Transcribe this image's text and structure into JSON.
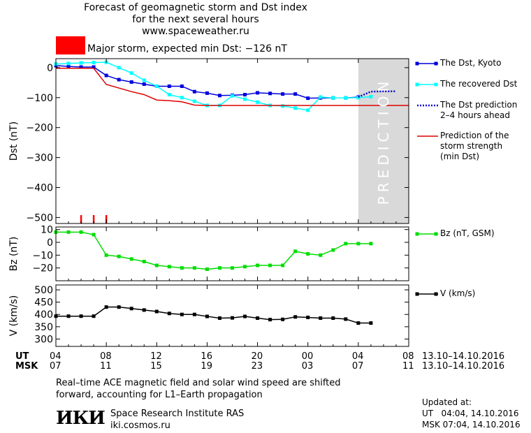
{
  "header": {
    "title_line1": "Forecast of geomagnetic storm and Dst index",
    "title_line2": "for the next several hours",
    "title_line3": "www.spaceweather.ru",
    "storm_label": "Major storm, expected min Dst: −126 nT",
    "storm_color": "#ff0000"
  },
  "chart_data": [
    {
      "type": "line",
      "panel": "dst",
      "ylabel": "Dst (nT)",
      "ylim": [
        -520,
        30
      ],
      "yticks": [
        0,
        -100,
        -200,
        -300,
        -400,
        -500
      ],
      "xlim_hours_since_04UT": [
        0,
        28
      ],
      "prediction_band": {
        "from": 24,
        "to": 28,
        "label": "PREDICTION"
      },
      "storm_markers_x": [
        2,
        3,
        4
      ],
      "series": [
        {
          "name": "The Dst, Kyoto",
          "color": "#0000dd",
          "style": "marker-square",
          "x": [
            0,
            1,
            2,
            3,
            4,
            5,
            6,
            7,
            8,
            9,
            10,
            11,
            12,
            13,
            14,
            15,
            16,
            17,
            18,
            19,
            20,
            21,
            22,
            23,
            24
          ],
          "y": [
            7,
            4,
            2,
            2,
            -26,
            -40,
            -48,
            -55,
            -62,
            -62,
            -62,
            -80,
            -85,
            -93,
            -92,
            -90,
            -84,
            -86,
            -88,
            -88,
            -102,
            -101,
            -101,
            -101,
            -98
          ]
        },
        {
          "name": "The recovered Dst",
          "color": "#00ffff",
          "style": "marker-square",
          "x": [
            0,
            1,
            2,
            3,
            4,
            5,
            6,
            7,
            8,
            9,
            10,
            11,
            12,
            13,
            14,
            15,
            16,
            17,
            18,
            19,
            20,
            21,
            22,
            23,
            24,
            25
          ],
          "y": [
            12,
            14,
            16,
            17,
            18,
            0,
            -18,
            -42,
            -62,
            -90,
            -100,
            -112,
            -126,
            -126,
            -94,
            -105,
            -115,
            -126,
            -128,
            -135,
            -142,
            -98,
            -101,
            -101,
            -100,
            -97
          ]
        },
        {
          "name": "The Dst prediction 2–4 hours ahead",
          "color": "#0000cc",
          "style": "dotted",
          "x": [
            24,
            25,
            26,
            27
          ],
          "y": [
            -98,
            -80,
            -79,
            -79
          ]
        },
        {
          "name": "Prediction of the storm strength (min Dst)",
          "color": "#dd0000",
          "style": "line",
          "x": [
            0,
            1,
            2,
            3,
            4,
            5,
            6,
            7,
            8,
            9,
            10,
            11,
            12,
            13,
            14,
            15,
            16,
            17,
            18,
            19,
            20,
            21,
            22,
            23,
            24,
            25,
            26,
            27,
            28
          ],
          "y": [
            -2,
            -2,
            -2,
            -2,
            -56,
            -68,
            -80,
            -90,
            -108,
            -110,
            -114,
            -125,
            -126,
            -126,
            -126,
            -126,
            -126,
            -126,
            -126,
            -126,
            -126,
            -126,
            -126,
            -126,
            -126,
            -126,
            -126,
            -126,
            -126
          ]
        }
      ]
    },
    {
      "type": "line",
      "panel": "bz",
      "ylabel": "Bz (nT)",
      "ylim": [
        -30,
        12
      ],
      "yticks": [
        10,
        0,
        -10,
        -20
      ],
      "series": [
        {
          "name": "Bz (nT, GSM)",
          "color": "#00dd00",
          "style": "marker-square",
          "x": [
            0,
            1,
            2,
            3,
            4,
            5,
            6,
            7,
            8,
            9,
            10,
            11,
            12,
            13,
            14,
            15,
            16,
            17,
            18,
            19,
            20,
            21,
            22,
            23,
            24,
            25
          ],
          "y": [
            8,
            8,
            8,
            6,
            -10,
            -11,
            -13,
            -15,
            -18,
            -19,
            -20,
            -20,
            -21,
            -20,
            -20,
            -19,
            -18,
            -18,
            -18,
            -7,
            -9,
            -10,
            -6,
            -1,
            -1,
            -1
          ]
        }
      ]
    },
    {
      "type": "line",
      "panel": "v",
      "ylabel": "V (km/s)",
      "ylim": [
        270,
        520
      ],
      "yticks": [
        500,
        450,
        400,
        350,
        300
      ],
      "series": [
        {
          "name": "V (km/s)",
          "color": "#000000",
          "style": "marker-square",
          "x": [
            0,
            1,
            2,
            3,
            4,
            5,
            6,
            7,
            8,
            9,
            10,
            11,
            12,
            13,
            14,
            15,
            16,
            17,
            18,
            19,
            20,
            21,
            22,
            23,
            24,
            25
          ],
          "y": [
            393,
            393,
            393,
            393,
            430,
            430,
            424,
            418,
            412,
            404,
            400,
            400,
            392,
            385,
            386,
            392,
            385,
            379,
            380,
            390,
            388,
            385,
            385,
            381,
            365,
            365
          ]
        }
      ]
    }
  ],
  "x_axis": {
    "ut_label": "UT",
    "msk_label": "MSK",
    "ut_ticks": [
      "04",
      "08",
      "12",
      "16",
      "20",
      "00",
      "04",
      "08"
    ],
    "msk_ticks": [
      "07",
      "11",
      "15",
      "19",
      "23",
      "03",
      "07",
      "11"
    ],
    "tick_hours": [
      0,
      4,
      8,
      12,
      16,
      20,
      24,
      28
    ],
    "ut_range": "13.10–14.10.2016",
    "msk_range": "13.10–14.10.2016"
  },
  "legend": {
    "dst_kyoto": "The Dst, Kyoto",
    "recovered": "The recovered Dst",
    "prediction_line1": "The Dst prediction",
    "prediction_line2": "2–4 hours ahead",
    "strength_line1": "Prediction of the",
    "strength_line2": "storm strength",
    "strength_line3": "(min Dst)",
    "bz": "Bz (nT, GSM)",
    "v": "V (km/s)"
  },
  "footer": {
    "note_line1": "Real–time ACE magnetic field and solar wind speed are shifted",
    "note_line2": "forward, accounting for L1–Earth propagation",
    "logo_text": "ИКИ",
    "institute": "Space Research Institute RAS",
    "site": "iki.cosmos.ru",
    "updated_label": "Updated at:",
    "updated_ut": "UT   04:04, 14.10.2016",
    "updated_msk": "MSK 07:04, 14.10.2016"
  }
}
